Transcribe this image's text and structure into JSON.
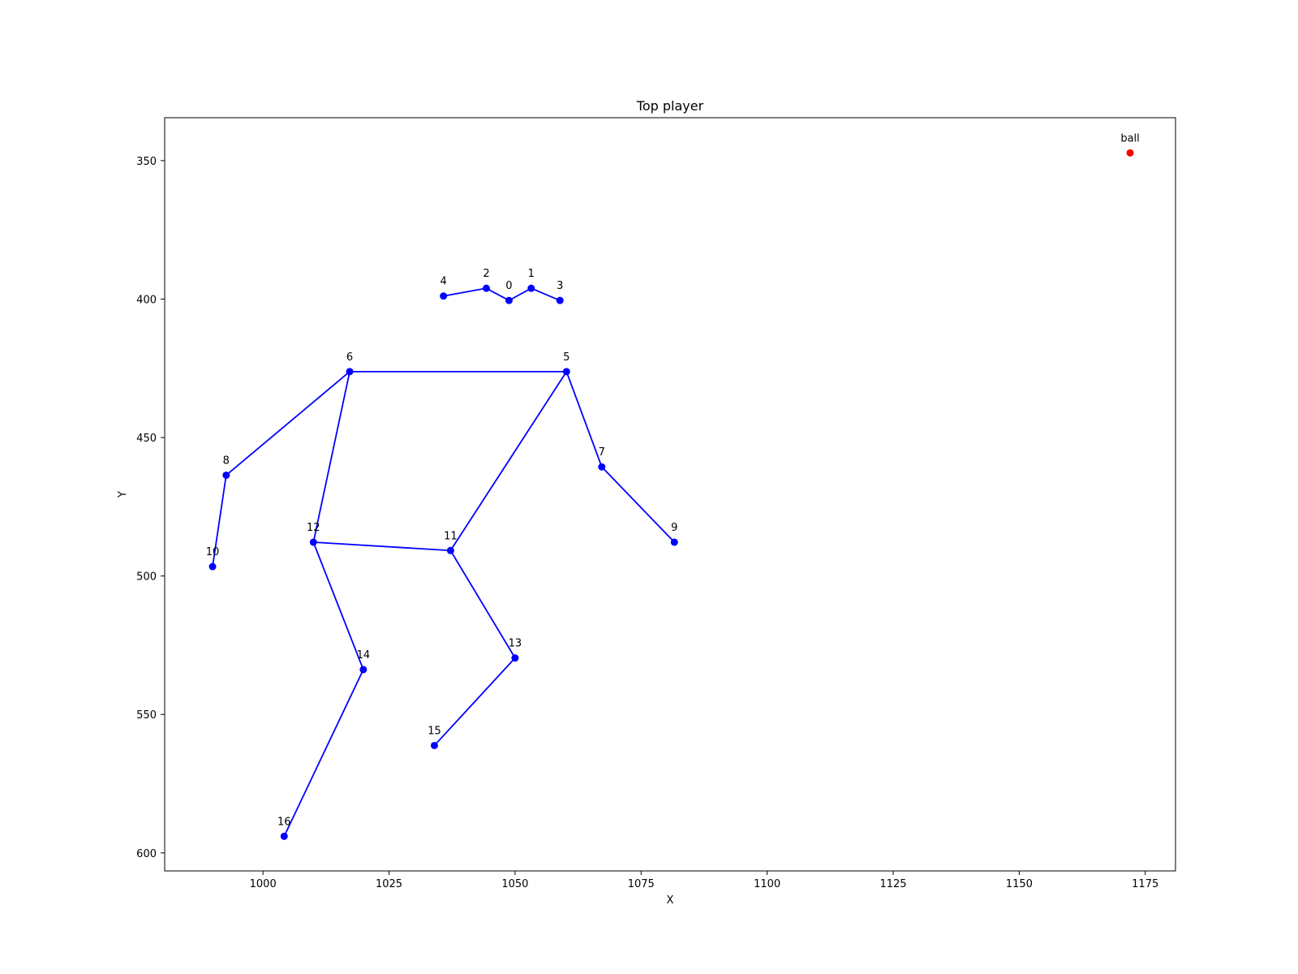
{
  "chart_data": {
    "type": "scatter",
    "title": "Top player",
    "xlabel": "X",
    "ylabel": "Y",
    "xlim": [
      980.5,
      1181
    ],
    "ylim": [
      606.5,
      334.5
    ],
    "y_inverted": true,
    "grid": false,
    "x_ticks": [
      1000,
      1025,
      1050,
      1075,
      1100,
      1125,
      1150,
      1175
    ],
    "y_ticks": [
      350,
      400,
      450,
      500,
      550,
      600
    ],
    "keypoints": [
      {
        "label": "0",
        "x": 1048.8,
        "y": 400.5
      },
      {
        "label": "1",
        "x": 1053.2,
        "y": 396.1
      },
      {
        "label": "2",
        "x": 1044.3,
        "y": 396.1
      },
      {
        "label": "3",
        "x": 1058.9,
        "y": 400.5
      },
      {
        "label": "4",
        "x": 1035.8,
        "y": 398.9
      },
      {
        "label": "5",
        "x": 1060.2,
        "y": 426.2
      },
      {
        "label": "6",
        "x": 1017.2,
        "y": 426.2
      },
      {
        "label": "7",
        "x": 1067.2,
        "y": 460.6
      },
      {
        "label": "8",
        "x": 992.7,
        "y": 463.6
      },
      {
        "label": "9",
        "x": 1081.6,
        "y": 487.8
      },
      {
        "label": "10",
        "x": 990.0,
        "y": 496.6
      },
      {
        "label": "11",
        "x": 1037.2,
        "y": 490.8
      },
      {
        "label": "12",
        "x": 1010.0,
        "y": 487.8
      },
      {
        "label": "13",
        "x": 1050.0,
        "y": 529.6
      },
      {
        "label": "14",
        "x": 1019.9,
        "y": 533.8
      },
      {
        "label": "15",
        "x": 1034.0,
        "y": 561.2
      },
      {
        "label": "16",
        "x": 1004.2,
        "y": 594.0
      }
    ],
    "skeleton": [
      [
        4,
        2
      ],
      [
        2,
        0
      ],
      [
        0,
        1
      ],
      [
        1,
        3
      ],
      [
        6,
        5
      ],
      [
        6,
        8
      ],
      [
        8,
        10
      ],
      [
        5,
        7
      ],
      [
        7,
        9
      ],
      [
        6,
        12
      ],
      [
        5,
        11
      ],
      [
        12,
        11
      ],
      [
        12,
        14
      ],
      [
        14,
        16
      ],
      [
        11,
        13
      ],
      [
        13,
        15
      ]
    ],
    "ball": {
      "label": "ball",
      "x": 1172.0,
      "y": 347.2
    },
    "colors": {
      "skeleton": "#0000ff",
      "ball": "#ff0000",
      "axes": "#000000"
    }
  }
}
